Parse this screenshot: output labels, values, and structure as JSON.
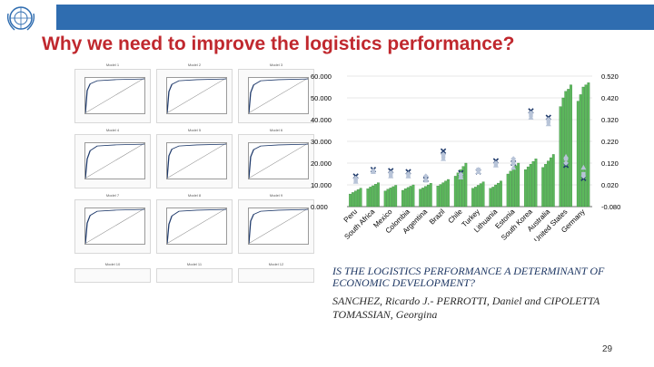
{
  "header": {
    "title": "Why we need to improve the logistics performance?"
  },
  "thumbnails": {
    "models": [
      "Model 1",
      "Model 2",
      "Model 3",
      "Model 4",
      "Model 5",
      "Model 6",
      "Model 7",
      "Model 8",
      "Model 9",
      "Model 10",
      "Model 11",
      "Model 12"
    ]
  },
  "chart_data": {
    "type": "bar",
    "categories": [
      "Peru",
      "South Africa",
      "Mexico",
      "Colombia",
      "Argentina",
      "Brazil",
      "Chile",
      "Turkey",
      "Lithuania",
      "Estonia",
      "South Korea",
      "Australia",
      "United States",
      "Germany"
    ],
    "y_left": {
      "ticks": [
        "0.000",
        "10.000",
        "20.000",
        "30.000",
        "40.000",
        "50.000",
        "60.000"
      ],
      "range": [
        0,
        60000
      ]
    },
    "y_right": {
      "ticks": [
        "-0.080",
        "0.020",
        "0.120",
        "0.220",
        "0.320",
        "0.420",
        "0.520"
      ],
      "range": [
        -0.08,
        0.52
      ]
    },
    "series": [
      {
        "values": [
          5.8,
          8.2,
          7.2,
          7.5,
          8.0,
          9.5,
          14.0,
          8.4,
          8.4,
          15.0,
          17.0,
          18.0,
          46.0,
          48.5
        ]
      },
      {
        "values": [
          6.5,
          9.0,
          8.0,
          8.2,
          8.6,
          10.2,
          15.5,
          9.0,
          9.0,
          16.3,
          18.3,
          19.5,
          50.0,
          51.5
        ]
      },
      {
        "values": [
          7.2,
          9.6,
          8.6,
          8.8,
          9.3,
          11.0,
          17.0,
          9.8,
          10.0,
          17.5,
          19.5,
          21.0,
          53.0,
          55.0
        ]
      },
      {
        "values": [
          7.8,
          10.3,
          9.2,
          9.4,
          10.0,
          11.8,
          18.5,
          10.6,
          10.8,
          18.8,
          20.8,
          22.5,
          54.0,
          56.0
        ]
      },
      {
        "values": [
          8.5,
          11.0,
          9.8,
          10.0,
          10.7,
          12.5,
          20.0,
          11.4,
          11.8,
          20.0,
          22.0,
          24.0,
          56.0,
          57.0
        ]
      }
    ],
    "markers": [
      {
        "values": [
          0.06,
          0.09,
          0.085,
          0.08,
          0.045,
          0.175,
          0.075,
          0.08,
          0.13,
          0.12,
          0.36,
          0.33,
          0.11,
          0.05
        ]
      },
      {
        "values": [
          0.05,
          0.085,
          0.075,
          0.07,
          0.06,
          0.16,
          0.068,
          0.09,
          0.12,
          0.14,
          0.35,
          0.32,
          0.12,
          0.06
        ]
      },
      {
        "values": [
          0.04,
          0.08,
          0.065,
          0.06,
          0.04,
          0.15,
          0.06,
          0.09,
          0.11,
          0.12,
          0.34,
          0.31,
          0.14,
          0.07
        ]
      },
      {
        "values": [
          0.035,
          0.08,
          0.06,
          0.06,
          0.05,
          0.14,
          0.055,
          0.08,
          0.11,
          0.1,
          0.33,
          0.3,
          0.15,
          0.1
        ]
      }
    ],
    "colors": {
      "bar": "#5cb85c",
      "bar_edge": "#2e7d32",
      "marker_dark": "#1f3a6b",
      "marker_light": "#b8c4d8"
    }
  },
  "caption": {
    "title": "IS THE LOGISTICS PERFORMANCE A DETERMINANT OF ECONOMIC DEVELOPMENT?",
    "authors": "SANCHEZ, Ricardo J.- PERROTTI, Daniel and CIPOLETTA TOMASSIAN, Georgina"
  },
  "page_number": "29"
}
